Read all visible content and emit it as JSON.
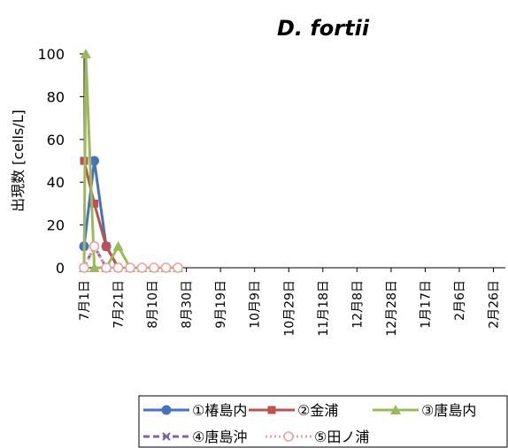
{
  "chart_data": {
    "type": "line",
    "title": "D. fortii",
    "ylabel": "出現数 [cells/L]",
    "xlabel": "",
    "ylim": [
      0,
      100
    ],
    "yticks": [
      0,
      20,
      40,
      60,
      80,
      100
    ],
    "xlim": [
      0,
      247
    ],
    "xtick_labels": [
      "7月1日",
      "7月21日",
      "8月10日",
      "8月30日",
      "9月19日",
      "10月9日",
      "10月29日",
      "11月18日",
      "12月8日",
      "12月28日",
      "1月17日",
      "2月6日",
      "2月26日"
    ],
    "xtick_days": [
      0,
      20,
      40,
      60,
      80,
      100,
      120,
      140,
      160,
      180,
      200,
      220,
      240
    ],
    "grid": false,
    "legend_position": "bottom",
    "series": [
      {
        "name": "①椿島内",
        "color": "#4472C4",
        "marker": "circle",
        "dash": "solid",
        "x": [
          0,
          6,
          13,
          20
        ],
        "y": [
          10,
          50,
          10,
          0
        ]
      },
      {
        "name": "②金浦",
        "color": "#C0504D",
        "marker": "square",
        "dash": "solid",
        "x": [
          0,
          6,
          13,
          20
        ],
        "y": [
          50,
          30,
          10,
          0
        ]
      },
      {
        "name": "③唐島内",
        "color": "#9BBB59",
        "marker": "triangle",
        "dash": "solid",
        "x": [
          0,
          1,
          6,
          13,
          20,
          27,
          34,
          41,
          48,
          55
        ],
        "y": [
          0,
          100,
          0,
          0,
          10,
          0,
          0,
          0,
          0,
          0
        ]
      },
      {
        "name": "④唐島沖",
        "color": "#8064A2",
        "marker": "x",
        "dash": "dashed",
        "x": [
          0,
          6,
          13,
          20
        ],
        "y": [
          0,
          10,
          0,
          0
        ]
      },
      {
        "name": "⑤田ノ浦",
        "color": "#F2A19E",
        "marker": "open-circle",
        "dash": "dotted",
        "x": [
          0,
          6,
          13,
          20,
          27,
          34,
          41,
          48,
          55
        ],
        "y": [
          0,
          10,
          0,
          0,
          0,
          0,
          0,
          0,
          0
        ]
      }
    ]
  }
}
